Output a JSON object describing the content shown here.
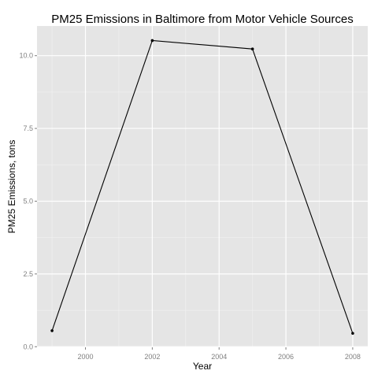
{
  "chart_data": {
    "type": "line",
    "title": "PM25 Emissions in Baltimore from Motor Vehicle Sources",
    "xlabel": "Year",
    "ylabel": "PM25 Emissions, tons",
    "x": [
      1999,
      2002,
      2005,
      2008
    ],
    "y": [
      0.55,
      10.52,
      10.23,
      0.46
    ],
    "xlim": [
      1998.55,
      2008.45
    ],
    "ylim": [
      -0.02,
      11.02
    ],
    "x_ticks": [
      2000,
      2002,
      2004,
      2006,
      2008
    ],
    "x_tick_labels": [
      "2000",
      "2002",
      "2004",
      "2006",
      "2008"
    ],
    "y_ticks": [
      0,
      2.5,
      5,
      7.5,
      10
    ],
    "y_tick_labels": [
      "0.0",
      "2.5",
      "5.0",
      "7.5",
      "10.0"
    ],
    "grid": true,
    "legend": "none",
    "colors": {
      "panel_background": "#e5e5e5",
      "grid_major": "#ffffff",
      "grid_minor": "#f2f2f2",
      "line": "#000000",
      "point": "#000000",
      "tick_label": "#7f7f7f",
      "text": "#000000"
    }
  }
}
